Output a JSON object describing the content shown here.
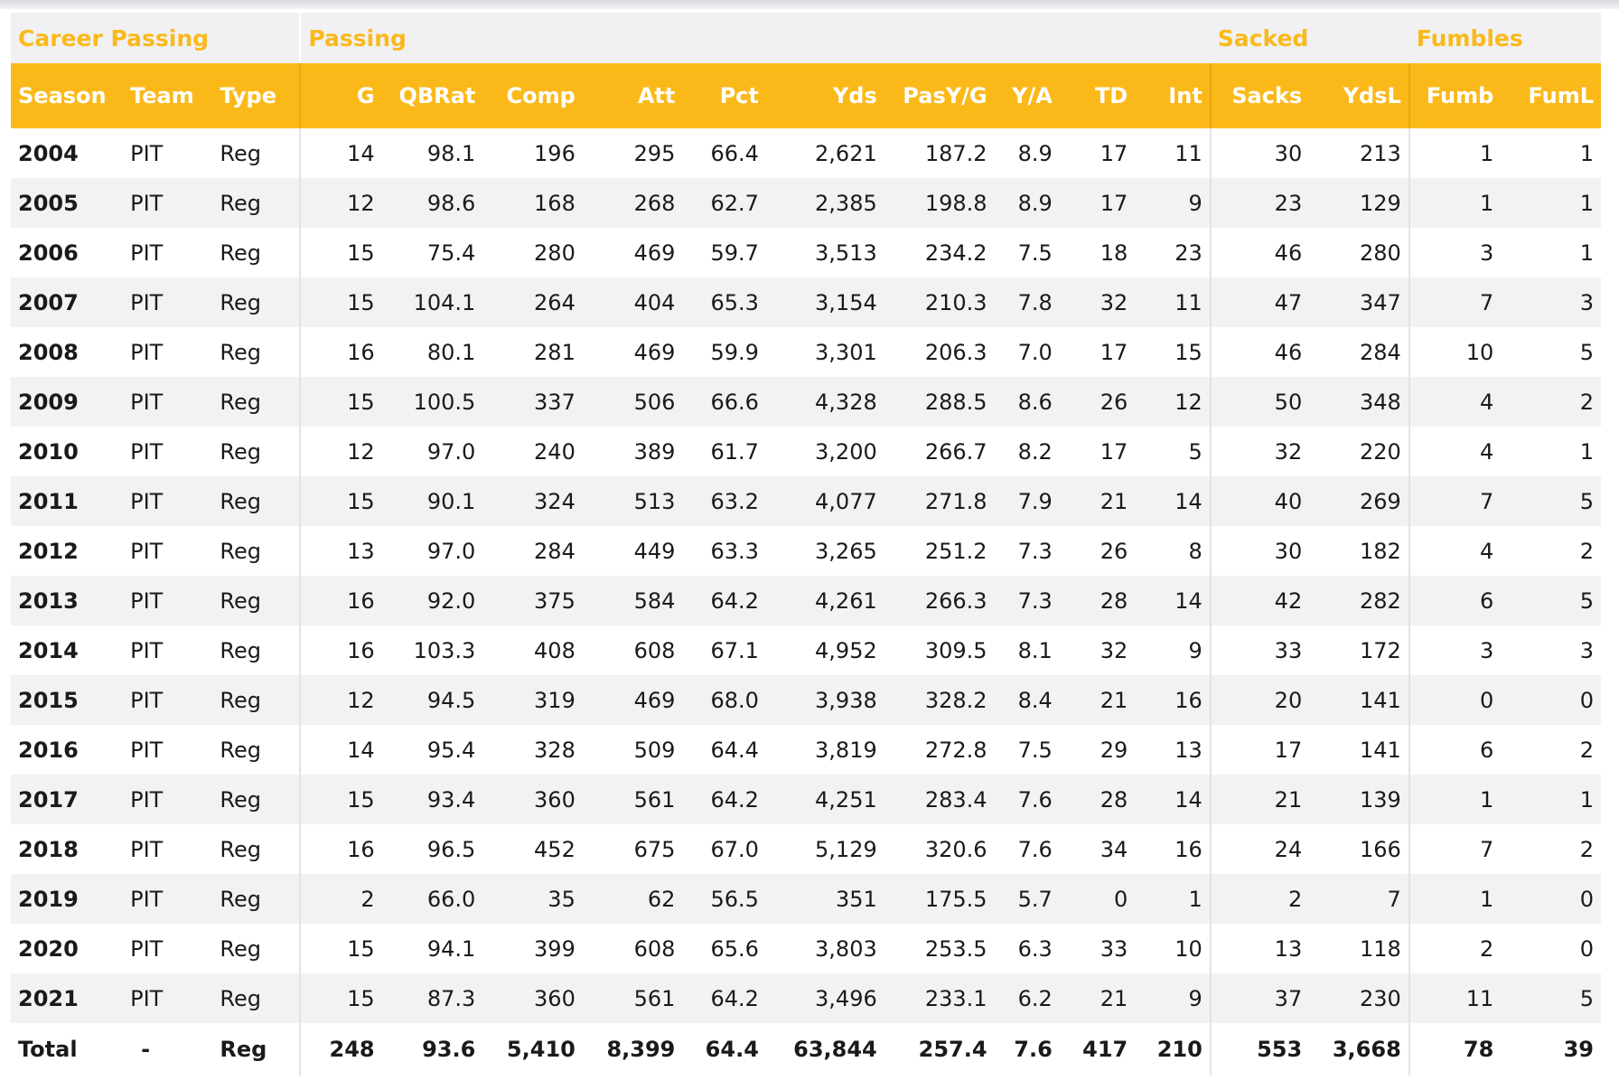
{
  "groups": {
    "career": "Career Passing",
    "passing": "Passing",
    "sacked": "Sacked",
    "fumbles": "Fumbles"
  },
  "columns": [
    "Season",
    "Team",
    "Type",
    "G",
    "QBRat",
    "Comp",
    "Att",
    "Pct",
    "Yds",
    "PasY/G",
    "Y/A",
    "TD",
    "Int",
    "Sacks",
    "YdsL",
    "Fumb",
    "FumL"
  ],
  "rows": [
    [
      "2004",
      "PIT",
      "Reg",
      "14",
      "98.1",
      "196",
      "295",
      "66.4",
      "2,621",
      "187.2",
      "8.9",
      "17",
      "11",
      "30",
      "213",
      "1",
      "1"
    ],
    [
      "2005",
      "PIT",
      "Reg",
      "12",
      "98.6",
      "168",
      "268",
      "62.7",
      "2,385",
      "198.8",
      "8.9",
      "17",
      "9",
      "23",
      "129",
      "1",
      "1"
    ],
    [
      "2006",
      "PIT",
      "Reg",
      "15",
      "75.4",
      "280",
      "469",
      "59.7",
      "3,513",
      "234.2",
      "7.5",
      "18",
      "23",
      "46",
      "280",
      "3",
      "1"
    ],
    [
      "2007",
      "PIT",
      "Reg",
      "15",
      "104.1",
      "264",
      "404",
      "65.3",
      "3,154",
      "210.3",
      "7.8",
      "32",
      "11",
      "47",
      "347",
      "7",
      "3"
    ],
    [
      "2008",
      "PIT",
      "Reg",
      "16",
      "80.1",
      "281",
      "469",
      "59.9",
      "3,301",
      "206.3",
      "7.0",
      "17",
      "15",
      "46",
      "284",
      "10",
      "5"
    ],
    [
      "2009",
      "PIT",
      "Reg",
      "15",
      "100.5",
      "337",
      "506",
      "66.6",
      "4,328",
      "288.5",
      "8.6",
      "26",
      "12",
      "50",
      "348",
      "4",
      "2"
    ],
    [
      "2010",
      "PIT",
      "Reg",
      "12",
      "97.0",
      "240",
      "389",
      "61.7",
      "3,200",
      "266.7",
      "8.2",
      "17",
      "5",
      "32",
      "220",
      "4",
      "1"
    ],
    [
      "2011",
      "PIT",
      "Reg",
      "15",
      "90.1",
      "324",
      "513",
      "63.2",
      "4,077",
      "271.8",
      "7.9",
      "21",
      "14",
      "40",
      "269",
      "7",
      "5"
    ],
    [
      "2012",
      "PIT",
      "Reg",
      "13",
      "97.0",
      "284",
      "449",
      "63.3",
      "3,265",
      "251.2",
      "7.3",
      "26",
      "8",
      "30",
      "182",
      "4",
      "2"
    ],
    [
      "2013",
      "PIT",
      "Reg",
      "16",
      "92.0",
      "375",
      "584",
      "64.2",
      "4,261",
      "266.3",
      "7.3",
      "28",
      "14",
      "42",
      "282",
      "6",
      "5"
    ],
    [
      "2014",
      "PIT",
      "Reg",
      "16",
      "103.3",
      "408",
      "608",
      "67.1",
      "4,952",
      "309.5",
      "8.1",
      "32",
      "9",
      "33",
      "172",
      "3",
      "3"
    ],
    [
      "2015",
      "PIT",
      "Reg",
      "12",
      "94.5",
      "319",
      "469",
      "68.0",
      "3,938",
      "328.2",
      "8.4",
      "21",
      "16",
      "20",
      "141",
      "0",
      "0"
    ],
    [
      "2016",
      "PIT",
      "Reg",
      "14",
      "95.4",
      "328",
      "509",
      "64.4",
      "3,819",
      "272.8",
      "7.5",
      "29",
      "13",
      "17",
      "141",
      "6",
      "2"
    ],
    [
      "2017",
      "PIT",
      "Reg",
      "15",
      "93.4",
      "360",
      "561",
      "64.2",
      "4,251",
      "283.4",
      "7.6",
      "28",
      "14",
      "21",
      "139",
      "1",
      "1"
    ],
    [
      "2018",
      "PIT",
      "Reg",
      "16",
      "96.5",
      "452",
      "675",
      "67.0",
      "5,129",
      "320.6",
      "7.6",
      "34",
      "16",
      "24",
      "166",
      "7",
      "2"
    ],
    [
      "2019",
      "PIT",
      "Reg",
      "2",
      "66.0",
      "35",
      "62",
      "56.5",
      "351",
      "175.5",
      "5.7",
      "0",
      "1",
      "2",
      "7",
      "1",
      "0"
    ],
    [
      "2020",
      "PIT",
      "Reg",
      "15",
      "94.1",
      "399",
      "608",
      "65.6",
      "3,803",
      "253.5",
      "6.3",
      "33",
      "10",
      "13",
      "118",
      "2",
      "0"
    ],
    [
      "2021",
      "PIT",
      "Reg",
      "15",
      "87.3",
      "360",
      "561",
      "64.2",
      "3,496",
      "233.1",
      "6.2",
      "21",
      "9",
      "37",
      "230",
      "11",
      "5"
    ]
  ],
  "total": [
    "Total",
    "-",
    "Reg",
    "248",
    "93.6",
    "5,410",
    "8,399",
    "64.4",
    "63,844",
    "257.4",
    "7.6",
    "417",
    "210",
    "553",
    "3,668",
    "78",
    "39"
  ],
  "colors": {
    "accent": "#fbb919",
    "header_text": "#ffffff",
    "stripe": "#f2f2f4"
  }
}
